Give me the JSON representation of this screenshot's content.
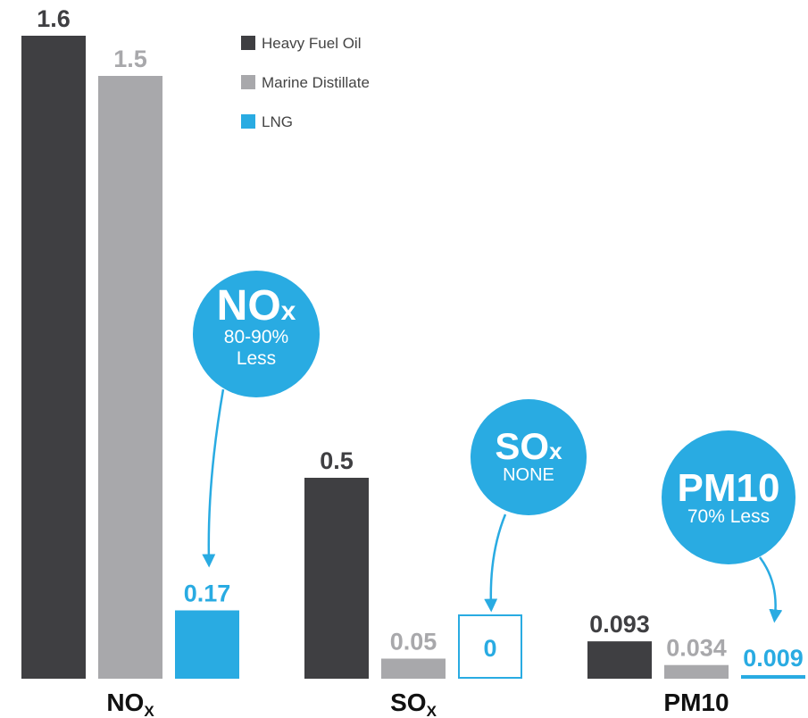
{
  "colors": {
    "hfo": "#3f3f42",
    "md": "#a8a8ab",
    "lng": "#29abe2",
    "bubble": "#29abe2"
  },
  "legend": [
    {
      "label": "Heavy Fuel Oil",
      "color": "#3f3f42"
    },
    {
      "label": "Marine Distillate",
      "color": "#a8a8ab"
    },
    {
      "label": "LNG",
      "color": "#29abe2"
    }
  ],
  "chart_data": {
    "type": "bar",
    "series": [
      {
        "name": "Heavy Fuel Oil",
        "values": [
          1.6,
          0.5,
          0.093
        ]
      },
      {
        "name": "Marine Distillate",
        "values": [
          1.5,
          0.05,
          0.034
        ]
      },
      {
        "name": "LNG",
        "values": [
          0.17,
          0,
          0.009
        ]
      }
    ],
    "value_labels": [
      [
        "1.6",
        "1.5",
        "0.17"
      ],
      [
        "0.5",
        "0.05",
        "0"
      ],
      [
        "0.093",
        "0.034",
        "0.009"
      ]
    ],
    "groups": [
      {
        "label_main": "NO",
        "label_sub": "X"
      },
      {
        "label_main": "SO",
        "label_sub": "X"
      },
      {
        "label_main": "PM10",
        "label_sub": ""
      }
    ],
    "legend_position": "top-center",
    "grid": false,
    "y_axis_visible": false,
    "annotations": [
      {
        "target": "NOx LNG",
        "title_main": "NO",
        "title_sub": "x",
        "line1": "80-90%",
        "line2": "Less"
      },
      {
        "target": "SOx LNG",
        "title_main": "SO",
        "title_sub": "x",
        "line1": "NONE",
        "line2": ""
      },
      {
        "target": "PM10 LNG",
        "title_main": "PM10",
        "title_sub": "",
        "line1": "70% Less",
        "line2": ""
      }
    ]
  }
}
